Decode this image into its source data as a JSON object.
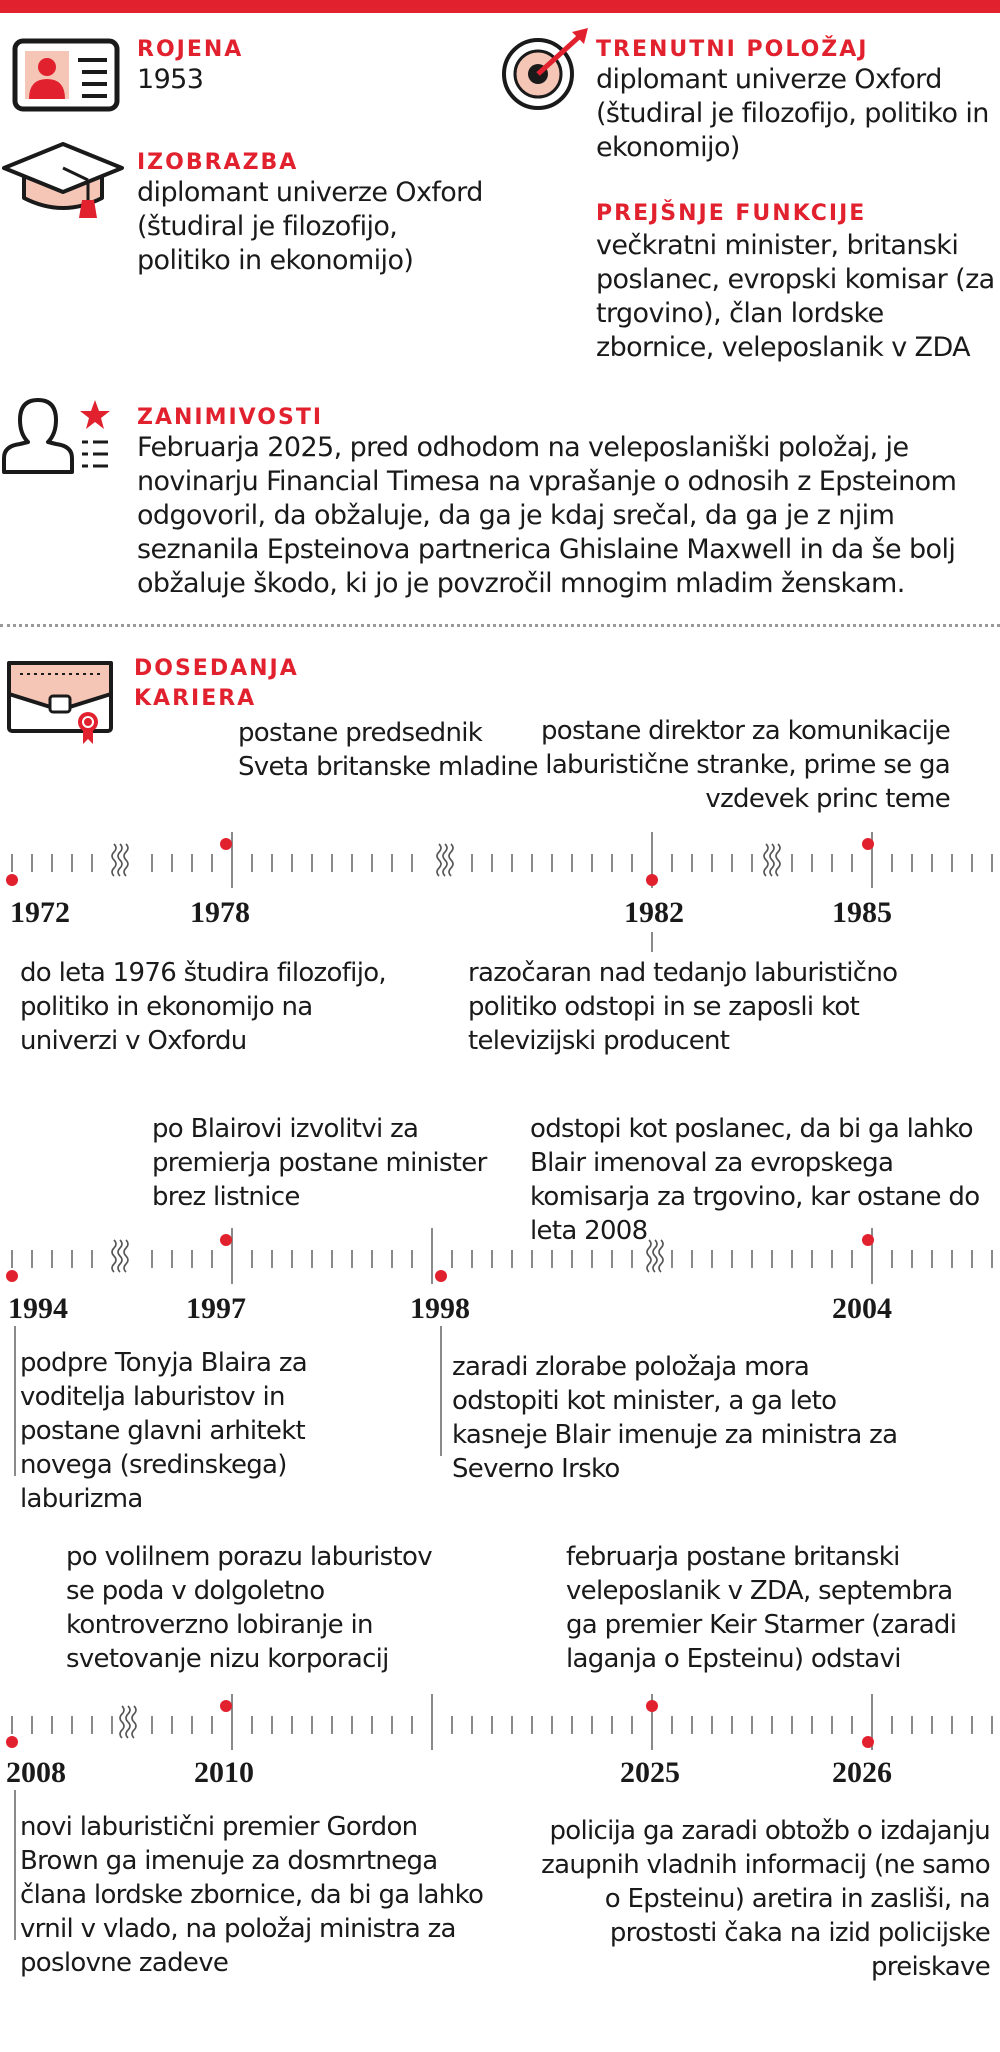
{
  "colors": {
    "accent": "#e2212e",
    "icon_fill": "#f5c6b6",
    "line": "#8a8a8a"
  },
  "profile": {
    "born": {
      "label": "ROJENA",
      "value": "1953",
      "icon": "id-card-icon"
    },
    "education": {
      "label": "IZOBRAZBA",
      "value": "diplomant univerze Oxford (študiral je filozofijo, politiko in ekonomijo)",
      "icon": "graduation-cap-icon"
    },
    "current_position": {
      "label": "TRENUTNI POLOŽAJ",
      "value": "diplomant univerze Oxford (študiral je filozofijo, politiko in ekonomijo)",
      "icon": "target-icon"
    },
    "previous_functions": {
      "label": "PREJŠNJE FUNKCIJE",
      "value": "večkratni minister, britanski poslanec, evropski komisar (za trgovino), član lordske zbornice, veleposlanik v ZDA"
    },
    "trivia": {
      "label": "ZANIMIVOSTI",
      "value": "Februarja 2025, pred odhodom na veleposlaniški položaj, je novinarju Financial Timesa na vprašanje o odnosih z Epsteinom odgovoril, da obžaluje, da ga je kdaj srečal, da ga je z njim seznanila Epsteinova partnerica Ghislaine Maxwell in da še bolj obžaluje škodo, ki jo je povzročil mnogim mladim ženskam.",
      "icon": "person-star-icon"
    }
  },
  "career": {
    "label_line1": "DOSEDANJA",
    "label_line2": "KARIERA",
    "icon": "envelope-seal-icon",
    "rows": [
      {
        "years": [
          "1972",
          "1978",
          "1982",
          "1985"
        ],
        "above": [
          "postane predsednik Sveta britanske mladine",
          "postane direktor za komunikacije laburistične stranke, prime se ga vzdevek princ teme"
        ],
        "below": [
          "do leta 1976 študira filozofijo, politiko in ekonomijo na univerzi v Oxfordu",
          "razočaran nad tedanjo laburistično politiko odstopi in se zaposli kot televizijski producent"
        ]
      },
      {
        "years": [
          "1994",
          "1997",
          "1998",
          "2004"
        ],
        "above": [
          "po Blairovi izvolitvi za premierja postane minister brez listnice",
          "odstopi kot poslanec, da bi ga lahko Blair imenoval za evropskega komisarja za trgovino, kar ostane do leta 2008"
        ],
        "below": [
          "podpre Tonyja Blaira za voditelja laburistov in postane glavni arhitekt novega (sredinskega) laburizma",
          "zaradi zlorabe položaja mora odstopiti kot minister, a ga leto kasneje Blair imenuje za ministra za Severno Irsko"
        ]
      },
      {
        "years": [
          "2008",
          "2010",
          "2025",
          "2026"
        ],
        "above": [
          "po volilnem porazu laburistov se poda v dolgoletno kontroverzno lobiranje in svetovanje nizu korporacij",
          "februarja postane britanski veleposlanik v ZDA, septembra ga premier Keir Starmer (zaradi laganja o Epsteinu) odstavi"
        ],
        "below": [
          "novi laburistični premier Gordon Brown ga imenuje za dosmrtnega člana lordske zbornice, da bi ga lahko vrnil v vlado, na položaj ministra za poslovne zadeve",
          "policija ga zaradi obtožb o izdajanju zaupnih vladnih informacij (ne samo o Epsteinu) aretira in zasliši, na prostosti čaka na izid policijske preiskave"
        ]
      }
    ]
  }
}
